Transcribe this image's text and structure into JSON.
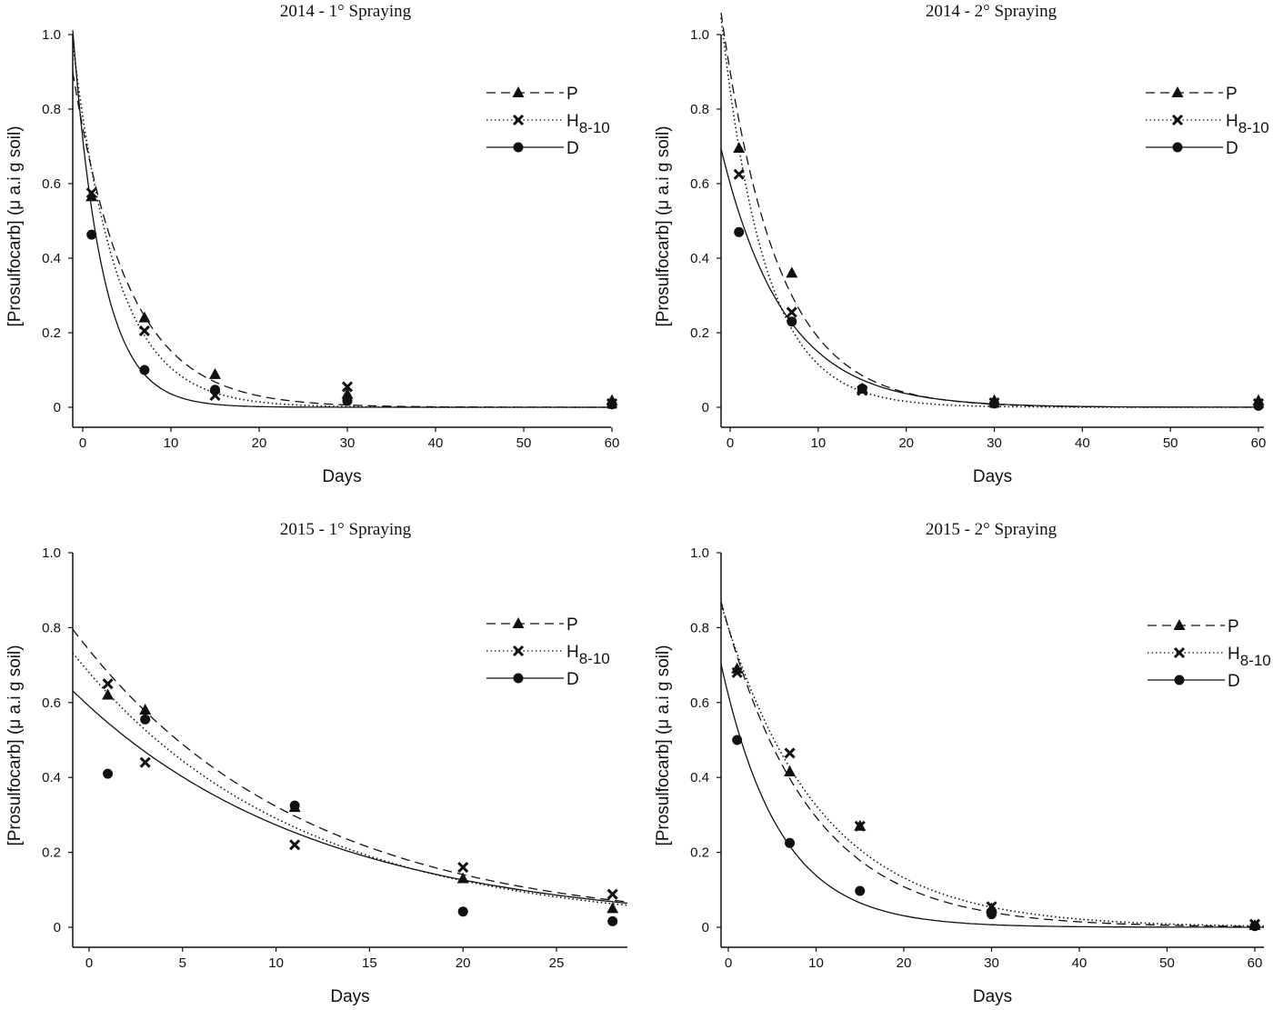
{
  "chart_data": [
    {
      "type": "scatter",
      "title": "2014 - 1° Spraying",
      "xlabel": "Days",
      "ylabel": "[Prosulfocarb] (μ a.i g soil)",
      "xlim": [
        -1,
        61
      ],
      "ylim": [
        -0.05,
        1.0
      ],
      "xticks": [
        "0",
        "10",
        "20",
        "30",
        "40",
        "50",
        "60"
      ],
      "yticks": [
        "0",
        "0.2",
        "0.4",
        "0.6",
        "0.8",
        "1.0"
      ],
      "grid": false,
      "legend_placement": "top-right",
      "series": [
        {
          "name": "P",
          "marker": "triangle",
          "line": "dashed",
          "x": [
            1,
            7,
            15,
            30,
            60
          ],
          "y": [
            0.565,
            0.24,
            0.088,
            0.035,
            0.018
          ],
          "fit": {
            "c0": 0.75,
            "k": 0.16
          }
        },
        {
          "name": "H8-10",
          "marker": "x",
          "line": "dotted",
          "x": [
            1,
            7,
            15,
            30,
            60
          ],
          "y": [
            0.575,
            0.205,
            0.032,
            0.055,
            0.01
          ],
          "fit": {
            "c0": 0.78,
            "k": 0.2
          }
        },
        {
          "name": "D",
          "marker": "circle",
          "line": "solid",
          "x": [
            1,
            7,
            15,
            30,
            60
          ],
          "y": [
            0.463,
            0.1,
            0.047,
            0.017,
            0.008
          ],
          "fit": {
            "c0": 0.72,
            "k": 0.3
          }
        }
      ]
    },
    {
      "type": "scatter",
      "title": "2014 - 2° Spraying",
      "xlabel": "Days",
      "ylabel": "[Prosulfocarb] (μ a.i g soil)",
      "xlim": [
        -1,
        61
      ],
      "ylim": [
        -0.05,
        1.0
      ],
      "xticks": [
        "0",
        "10",
        "20",
        "30",
        "40",
        "50",
        "60"
      ],
      "yticks": [
        "0",
        "0.2",
        "0.4",
        "0.6",
        "0.8",
        "1.0"
      ],
      "grid": false,
      "legend_placement": "top-right",
      "series": [
        {
          "name": "P",
          "marker": "triangle",
          "line": "dashed",
          "x": [
            1,
            7,
            15,
            30,
            60
          ],
          "y": [
            0.695,
            0.36,
            0.05,
            0.018,
            0.018
          ],
          "fit": {
            "c0": 0.9,
            "k": 0.157
          }
        },
        {
          "name": "H8-10",
          "marker": "x",
          "line": "dotted",
          "x": [
            1,
            7,
            15,
            30,
            60
          ],
          "y": [
            0.625,
            0.255,
            0.045,
            0.012,
            0.01
          ],
          "fit": {
            "c0": 0.85,
            "k": 0.2
          }
        },
        {
          "name": "D",
          "marker": "circle",
          "line": "solid",
          "x": [
            1,
            7,
            15,
            30,
            60
          ],
          "y": [
            0.47,
            0.23,
            0.05,
            0.01,
            0.004
          ],
          "fit": {
            "c0": 0.6,
            "k": 0.14
          }
        }
      ]
    },
    {
      "type": "scatter",
      "title": "2015 - 1° Spraying",
      "xlabel": "Days",
      "ylabel": "[Prosulfocarb] (μ a.i g soil)",
      "xlim": [
        -1,
        28.6
      ],
      "ylim": [
        -0.05,
        1.0
      ],
      "xticks": [
        "0",
        "5",
        "10",
        "15",
        "20",
        "25"
      ],
      "yticks": [
        "0",
        "0.2",
        "0.4",
        "0.6",
        "0.8",
        "1.0"
      ],
      "grid": false,
      "legend_placement": "top-right",
      "series": [
        {
          "name": "P",
          "marker": "triangle",
          "line": "dashed",
          "x": [
            1,
            3,
            11,
            20,
            28
          ],
          "y": [
            0.62,
            0.58,
            0.32,
            0.13,
            0.05
          ],
          "fit": {
            "c0": 0.74,
            "k": 0.083
          }
        },
        {
          "name": "H8-10",
          "marker": "x",
          "line": "dotted",
          "x": [
            1,
            3,
            11,
            20,
            28
          ],
          "y": [
            0.65,
            0.44,
            0.22,
            0.16,
            0.088
          ],
          "fit": {
            "c0": 0.68,
            "k": 0.085
          }
        },
        {
          "name": "D",
          "marker": "circle",
          "line": "solid",
          "x": [
            1,
            3,
            11,
            20,
            28
          ],
          "y": [
            0.41,
            0.555,
            0.325,
            0.042,
            0.016
          ],
          "fit": {
            "c0": 0.59,
            "k": 0.077
          }
        }
      ]
    },
    {
      "type": "scatter",
      "title": "2015 - 2° Spraying",
      "xlabel": "Days",
      "ylabel": "[Prosulfocarb] (μ a.i g soil)",
      "xlim": [
        -1,
        61
      ],
      "ylim": [
        -0.05,
        1.0
      ],
      "xticks": [
        "0",
        "10",
        "20",
        "30",
        "40",
        "50",
        "60"
      ],
      "yticks": [
        "0",
        "0.2",
        "0.4",
        "0.6",
        "0.8",
        "1.0"
      ],
      "grid": false,
      "legend_placement": "top-right",
      "series": [
        {
          "name": "P",
          "marker": "triangle",
          "line": "dashed",
          "x": [
            1,
            7,
            15,
            30,
            60
          ],
          "y": [
            0.69,
            0.415,
            0.27,
            0.05,
            0.005
          ],
          "fit": {
            "c0": 0.8,
            "k": 0.1
          }
        },
        {
          "name": "H8-10",
          "marker": "x",
          "line": "dotted",
          "x": [
            1,
            7,
            15,
            30,
            60
          ],
          "y": [
            0.68,
            0.465,
            0.27,
            0.055,
            0.008
          ],
          "fit": {
            "c0": 0.8,
            "k": 0.09
          }
        },
        {
          "name": "D",
          "marker": "circle",
          "line": "solid",
          "x": [
            1,
            7,
            15,
            30,
            60
          ],
          "y": [
            0.5,
            0.225,
            0.097,
            0.035,
            0.003
          ],
          "fit": {
            "c0": 0.62,
            "k": 0.15
          }
        }
      ]
    }
  ],
  "legend_labels": {
    "P": "P",
    "H": "H",
    "H_sub": "8-10",
    "D": "D"
  },
  "colors": {
    "ink": "#111111",
    "background": "#ffffff"
  }
}
